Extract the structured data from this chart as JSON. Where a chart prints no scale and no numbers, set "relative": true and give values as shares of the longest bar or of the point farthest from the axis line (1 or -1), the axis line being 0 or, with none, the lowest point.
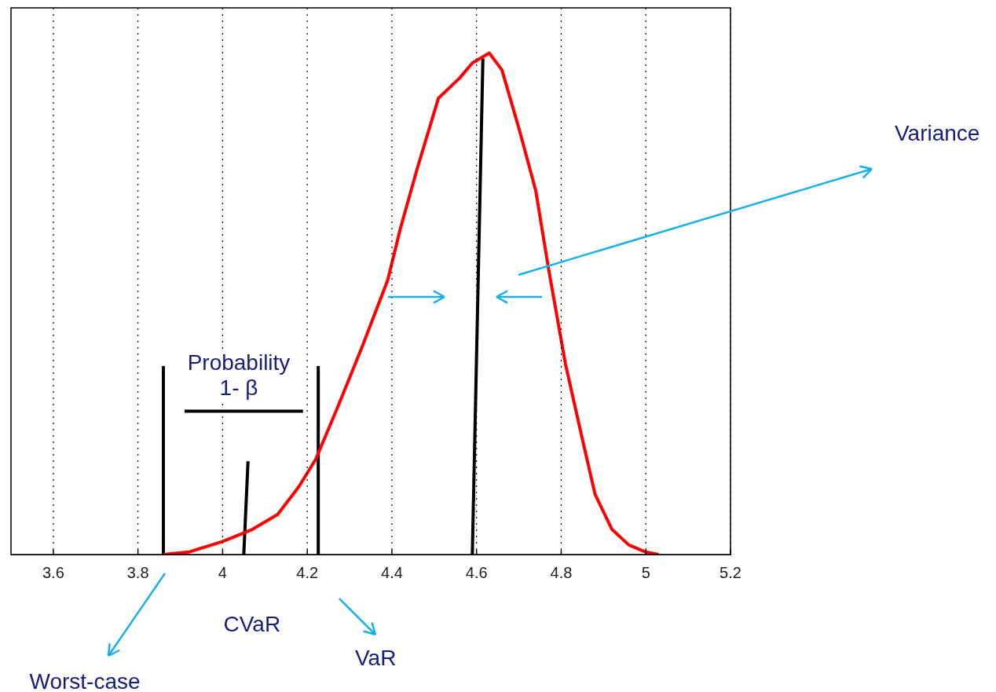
{
  "chart_data": {
    "type": "line",
    "relative": true,
    "xlim": [
      3.5,
      5.2
    ],
    "xticks": [
      3.6,
      3.8,
      4,
      4.2,
      4.4,
      4.6,
      4.8,
      5,
      5.2
    ],
    "grid": "x",
    "tick_labels": "x",
    "legend": false,
    "marker": "none",
    "series": [
      {
        "color": "#ff0000",
        "x": [
          3.86,
          3.92,
          4.0,
          4.07,
          4.13,
          4.18,
          4.22,
          4.27,
          4.33,
          4.39,
          4.42,
          4.46,
          4.51,
          4.56,
          4.59,
          4.63,
          4.66,
          4.7,
          4.74,
          4.77,
          4.81,
          4.85,
          4.88,
          4.92,
          4.96,
          5.0,
          5.03
        ],
        "values": [
          0,
          0.005,
          0.026,
          0.05,
          0.08,
          0.135,
          0.19,
          0.29,
          0.415,
          0.547,
          0.65,
          0.77,
          0.91,
          0.95,
          0.98,
          1,
          0.966,
          0.85,
          0.725,
          0.57,
          0.38,
          0.23,
          0.12,
          0.05,
          0.019,
          0.005,
          0
        ]
      },
      {
        "color": "#000000",
        "x": [
          3.86,
          3.86
        ],
        "values": [
          0,
          0.376
        ]
      },
      {
        "color": "#000000",
        "x": [
          4.226,
          4.226
        ],
        "values": [
          0,
          0.376
        ]
      },
      {
        "color": "#000000",
        "x": [
          3.91,
          4.19
        ],
        "values": [
          0.286,
          0.286
        ]
      },
      {
        "color": "#000000",
        "x": [
          4.05,
          4.06
        ],
        "values": [
          0,
          0.186
        ]
      },
      {
        "color": "#000000",
        "x": [
          4.59,
          4.615
        ],
        "values": [
          0,
          0.989
        ]
      }
    ],
    "annotations": [
      "Variance",
      "Probability 1- β",
      "CVaR",
      "VaR",
      "Worst-case"
    ]
  }
}
